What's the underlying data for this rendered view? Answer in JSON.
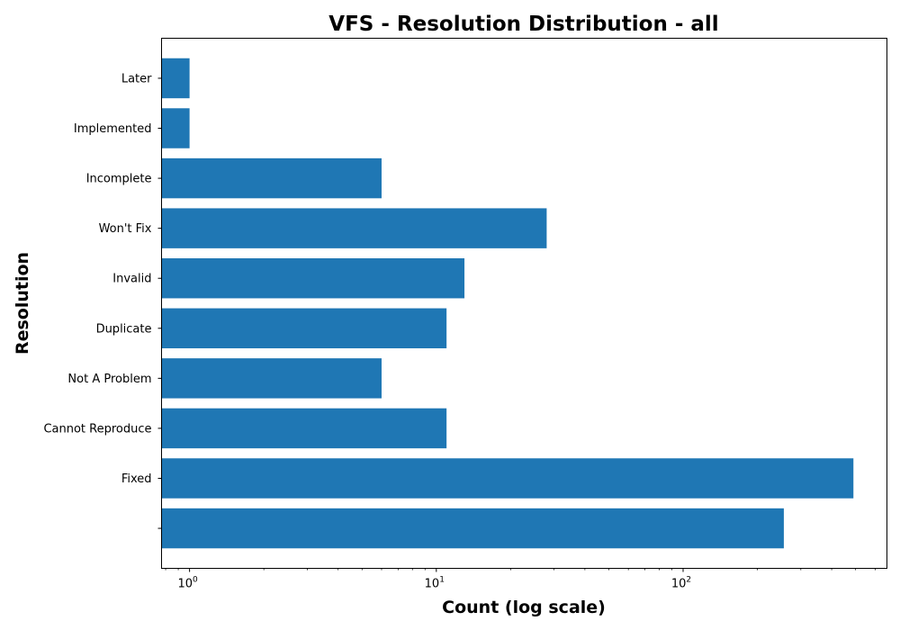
{
  "chart_data": {
    "type": "bar",
    "orientation": "horizontal",
    "title": "VFS - Resolution Distribution - all",
    "xlabel": "Count (log scale)",
    "ylabel": "Resolution",
    "x_scale": "log",
    "xlim": [
      0.77,
      670
    ],
    "x_ticks": [
      {
        "value": 1,
        "base": "10",
        "exp": "0"
      },
      {
        "value": 10,
        "base": "10",
        "exp": "1"
      },
      {
        "value": 100,
        "base": "10",
        "exp": "2"
      }
    ],
    "categories": [
      "",
      "Fixed",
      "Cannot Reproduce",
      "Not A Problem",
      "Duplicate",
      "Invalid",
      "Won't Fix",
      "Incomplete",
      "Implemented",
      "Later"
    ],
    "values": [
      256,
      490,
      11,
      6,
      11,
      13,
      28,
      6,
      1,
      1
    ],
    "bar_color": "#1f77b4",
    "grid": false,
    "legend": "none"
  }
}
